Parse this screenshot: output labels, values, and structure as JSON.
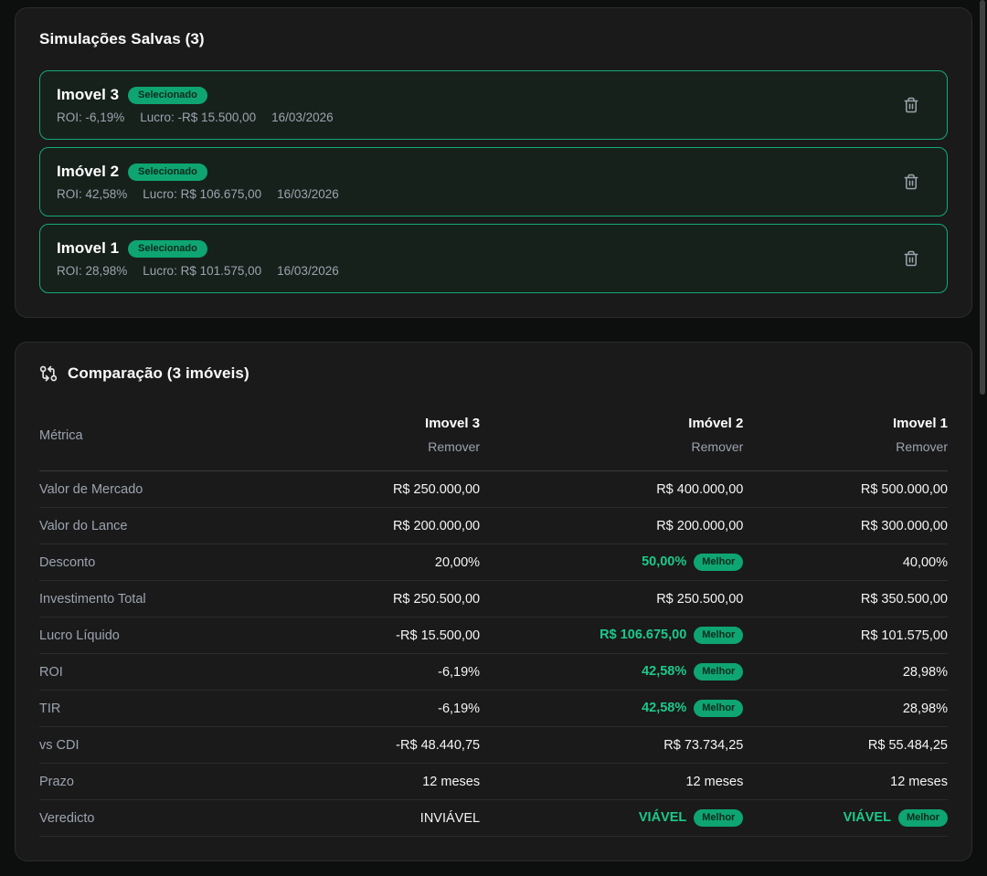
{
  "saved_panel": {
    "title": "Simulações Salvas (3)",
    "simulations": [
      {
        "name": "Imovel 3",
        "badge": "Selecionado",
        "roi": "ROI: -6,19%",
        "lucro": "Lucro: -R$ 15.500,00",
        "date": "16/03/2026"
      },
      {
        "name": "Imóvel 2",
        "badge": "Selecionado",
        "roi": "ROI: 42,58%",
        "lucro": "Lucro: R$ 106.675,00",
        "date": "16/03/2026"
      },
      {
        "name": "Imovel 1",
        "badge": "Selecionado",
        "roi": "ROI: 28,98%",
        "lucro": "Lucro: R$ 101.575,00",
        "date": "16/03/2026"
      }
    ]
  },
  "comparison_panel": {
    "title": "Comparação (3 imóveis)",
    "metric_header": "Métrica",
    "remove_label": "Remover",
    "best_badge": "Melhor",
    "columns": [
      "Imovel 3",
      "Imóvel 2",
      "Imovel 1"
    ],
    "rows": [
      {
        "metric": "Valor de Mercado",
        "values": [
          {
            "text": "R$ 250.000,00"
          },
          {
            "text": "R$ 400.000,00"
          },
          {
            "text": "R$ 500.000,00"
          }
        ]
      },
      {
        "metric": "Valor do Lance",
        "values": [
          {
            "text": "R$ 200.000,00"
          },
          {
            "text": "R$ 200.000,00"
          },
          {
            "text": "R$ 300.000,00"
          }
        ]
      },
      {
        "metric": "Desconto",
        "values": [
          {
            "text": "20,00%"
          },
          {
            "text": "50,00%",
            "green": true,
            "best": true
          },
          {
            "text": "40,00%"
          }
        ]
      },
      {
        "metric": "Investimento Total",
        "values": [
          {
            "text": "R$ 250.500,00"
          },
          {
            "text": "R$ 250.500,00"
          },
          {
            "text": "R$ 350.500,00"
          }
        ]
      },
      {
        "metric": "Lucro Líquido",
        "values": [
          {
            "text": "-R$ 15.500,00"
          },
          {
            "text": "R$ 106.675,00",
            "green": true,
            "best": true
          },
          {
            "text": "R$ 101.575,00"
          }
        ]
      },
      {
        "metric": "ROI",
        "values": [
          {
            "text": "-6,19%"
          },
          {
            "text": "42,58%",
            "green": true,
            "best": true
          },
          {
            "text": "28,98%"
          }
        ]
      },
      {
        "metric": "TIR",
        "values": [
          {
            "text": "-6,19%"
          },
          {
            "text": "42,58%",
            "green": true,
            "best": true
          },
          {
            "text": "28,98%"
          }
        ]
      },
      {
        "metric": "vs CDI",
        "values": [
          {
            "text": "-R$ 48.440,75"
          },
          {
            "text": "R$ 73.734,25"
          },
          {
            "text": "R$ 55.484,25"
          }
        ]
      },
      {
        "metric": "Prazo",
        "values": [
          {
            "text": "12 meses"
          },
          {
            "text": "12 meses"
          },
          {
            "text": "12 meses"
          }
        ]
      },
      {
        "metric": "Veredicto",
        "values": [
          {
            "text": "INVIÁVEL"
          },
          {
            "text": "VIÁVEL",
            "green": true,
            "best": true
          },
          {
            "text": "VIÁVEL",
            "green": true,
            "best": true
          }
        ]
      }
    ]
  },
  "colors": {
    "accent_green": "#0ea572",
    "green_text": "#1cc98b",
    "panel_bg": "#1a1a1a",
    "card_border": "#14a878"
  }
}
